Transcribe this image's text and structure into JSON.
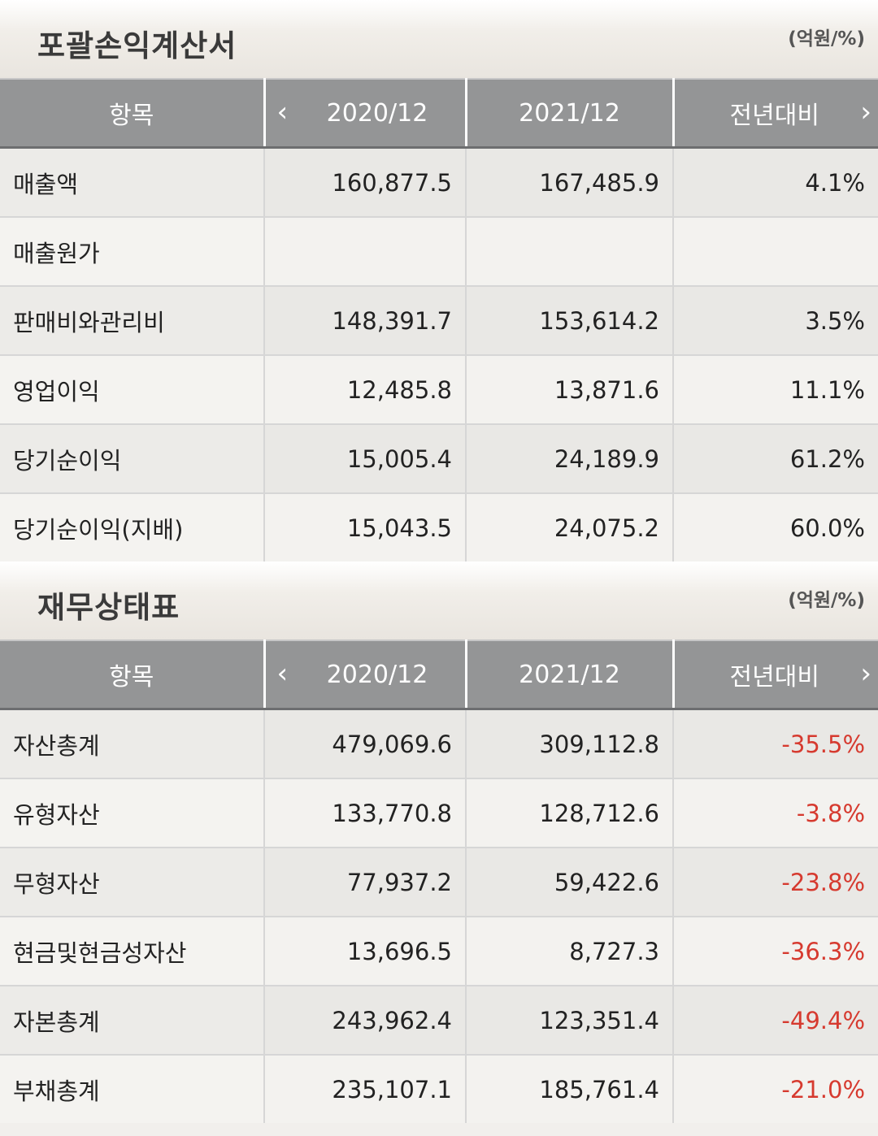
{
  "income": {
    "title": "포괄손익계산서",
    "unit": "(억원/%)",
    "headers": {
      "item": "항목",
      "prev": "2020/12",
      "curr": "2021/12",
      "yoy": "전년대비",
      "nav_left_icon": "‹",
      "nav_right_icon": "›"
    },
    "rows": [
      {
        "label": "매출액",
        "prev": "160,877.5",
        "curr": "167,485.9",
        "yoy": "4.1%"
      },
      {
        "label": "매출원가",
        "prev": "",
        "curr": "",
        "yoy": ""
      },
      {
        "label": "판매비와관리비",
        "prev": "148,391.7",
        "curr": "153,614.2",
        "yoy": "3.5%"
      },
      {
        "label": "영업이익",
        "prev": "12,485.8",
        "curr": "13,871.6",
        "yoy": "11.1%"
      },
      {
        "label": "당기순이익",
        "prev": "15,005.4",
        "curr": "24,189.9",
        "yoy": "61.2%"
      },
      {
        "label": "당기순이익(지배)",
        "prev": "15,043.5",
        "curr": "24,075.2",
        "yoy": "60.0%"
      }
    ]
  },
  "balance": {
    "title": "재무상태표",
    "unit": "(억원/%)",
    "headers": {
      "item": "항목",
      "prev": "2020/12",
      "curr": "2021/12",
      "yoy": "전년대비",
      "nav_left_icon": "‹",
      "nav_right_icon": "›"
    },
    "rows": [
      {
        "label": "자산총계",
        "prev": "479,069.6",
        "curr": "309,112.8",
        "yoy": "-35.5%"
      },
      {
        "label": "유형자산",
        "prev": "133,770.8",
        "curr": "128,712.6",
        "yoy": "-3.8%"
      },
      {
        "label": "무형자산",
        "prev": "77,937.2",
        "curr": "59,422.6",
        "yoy": "-23.8%"
      },
      {
        "label": "현금및현금성자산",
        "prev": "13,696.5",
        "curr": "8,727.3",
        "yoy": "-36.3%"
      },
      {
        "label": "자본총계",
        "prev": "243,962.4",
        "curr": "123,351.4",
        "yoy": "-49.4%"
      },
      {
        "label": "부채총계",
        "prev": "235,107.1",
        "curr": "185,761.4",
        "yoy": "-21.0%"
      }
    ]
  },
  "colors": {
    "header_bg": "#949596",
    "negative": "#d63a2f"
  }
}
